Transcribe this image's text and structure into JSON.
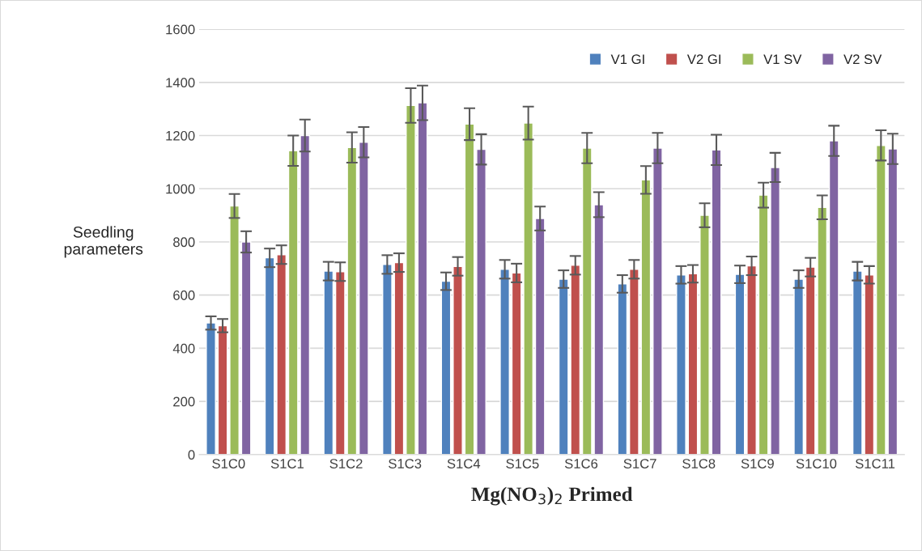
{
  "chart_data": {
    "type": "bar",
    "xlabel": "Mg(NO$_{3}$)$_{2}$ Primed",
    "ylabel": "Seedling\nparameters",
    "categories": [
      "S1C0",
      "S1C1",
      "S1C2",
      "S1C3",
      "S1C4",
      "S1C5",
      "S1C6",
      "S1C7",
      "S1C8",
      "S1C9",
      "S1C10",
      "S1C11"
    ],
    "series": [
      {
        "name": "V1 GI",
        "color": "#4f81bd",
        "values": [
          495,
          740,
          690,
          715,
          652,
          697,
          660,
          642,
          676,
          678,
          660,
          690
        ],
        "errors": [
          25,
          35,
          35,
          35,
          33,
          35,
          33,
          33,
          33,
          33,
          33,
          35
        ]
      },
      {
        "name": "V2 GI",
        "color": "#c0504d",
        "values": [
          485,
          752,
          688,
          722,
          708,
          683,
          712,
          697,
          680,
          710,
          705,
          676
        ],
        "errors": [
          25,
          35,
          35,
          35,
          35,
          35,
          35,
          35,
          33,
          35,
          35,
          33
        ]
      },
      {
        "name": "V1 SV",
        "color": "#9bbb59",
        "values": [
          935,
          1143,
          1155,
          1313,
          1243,
          1247,
          1153,
          1033,
          900,
          976,
          930,
          1163
        ],
        "errors": [
          45,
          57,
          57,
          65,
          60,
          62,
          57,
          52,
          45,
          47,
          45,
          57
        ]
      },
      {
        "name": "V2 SV",
        "color": "#8064a2",
        "values": [
          800,
          1200,
          1175,
          1323,
          1148,
          888,
          940,
          1153,
          1146,
          1080,
          1180,
          1150
        ],
        "errors": [
          40,
          60,
          57,
          65,
          57,
          45,
          47,
          57,
          57,
          55,
          57,
          57
        ]
      }
    ],
    "ylim": [
      0,
      1600
    ],
    "yticks": [
      0,
      200,
      400,
      600,
      800,
      1000,
      1200,
      1400,
      1600
    ],
    "grid": "y",
    "legend": "top right"
  }
}
